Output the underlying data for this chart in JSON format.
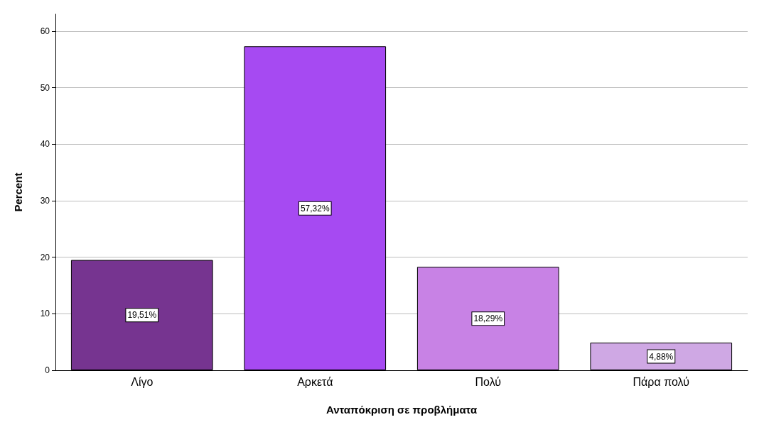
{
  "chart_data": {
    "type": "bar",
    "xlabel": "Ανταπόκριση σε προβλήματα",
    "ylabel": "Percent",
    "categories": [
      "Λίγο",
      "Αρκετά",
      "Πολύ",
      "Πάρα πολύ"
    ],
    "values": [
      19.51,
      57.32,
      18.29,
      4.88
    ],
    "value_labels": [
      "19,51%",
      "57,32%",
      "18,29%",
      "4,88%"
    ],
    "colors": [
      "#763490",
      "#a64af2",
      "#c882e5",
      "#cfa8e4"
    ],
    "ylim": [
      0,
      63
    ],
    "yticks": [
      0,
      10,
      20,
      30,
      40,
      50,
      60
    ],
    "grid": "y"
  }
}
